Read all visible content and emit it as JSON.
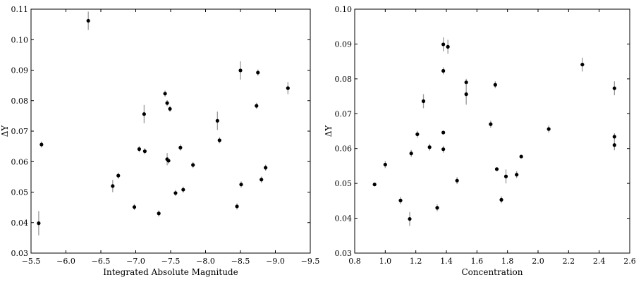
{
  "chart_data": [
    {
      "type": "scatter",
      "title": "",
      "xlabel": "Integrated Absolute Magnitude",
      "ylabel": "ΔY",
      "xlim": [
        -5.5,
        -9.5
      ],
      "ylim": [
        0.03,
        0.11
      ],
      "x_reversed": true,
      "xticks": [
        -5.5,
        -6.0,
        -6.5,
        -7.0,
        -7.5,
        -8.0,
        -8.5,
        -9.0,
        -9.5
      ],
      "xtick_labels": [
        "−5.5",
        "−6.0",
        "−6.5",
        "−7.0",
        "−7.5",
        "−8.0",
        "−8.5",
        "−9.0",
        "−9.5"
      ],
      "yticks": [
        0.03,
        0.04,
        0.05,
        0.06,
        0.07,
        0.08,
        0.09,
        0.1,
        0.11
      ],
      "ytick_labels": [
        "0.03",
        "0.04",
        "0.05",
        "0.06",
        "0.07",
        "0.08",
        "0.09",
        "0.10",
        "0.11"
      ],
      "grid": false,
      "points": [
        {
          "x": -5.61,
          "y": 0.0398,
          "err": 0.004
        },
        {
          "x": -5.65,
          "y": 0.0656,
          "err": 0.001
        },
        {
          "x": -6.32,
          "y": 0.1062,
          "err": 0.003
        },
        {
          "x": -6.67,
          "y": 0.052,
          "err": 0.002
        },
        {
          "x": -6.75,
          "y": 0.0554,
          "err": 0.001
        },
        {
          "x": -6.98,
          "y": 0.0451,
          "err": 0.001
        },
        {
          "x": -7.05,
          "y": 0.0641,
          "err": 0.001
        },
        {
          "x": -7.12,
          "y": 0.0756,
          "err": 0.003
        },
        {
          "x": -7.13,
          "y": 0.0634,
          "err": 0.001
        },
        {
          "x": -7.33,
          "y": 0.043,
          "err": 0.001
        },
        {
          "x": -7.42,
          "y": 0.0823,
          "err": 0.001
        },
        {
          "x": -7.45,
          "y": 0.0608,
          "err": 0.002
        },
        {
          "x": -7.45,
          "y": 0.0792,
          "err": 0.001
        },
        {
          "x": -7.47,
          "y": 0.0603,
          "err": 0.001
        },
        {
          "x": -7.49,
          "y": 0.0773,
          "err": 0.001
        },
        {
          "x": -7.57,
          "y": 0.0497,
          "err": 0.001
        },
        {
          "x": -7.64,
          "y": 0.0646,
          "err": 0.001
        },
        {
          "x": -7.68,
          "y": 0.0508,
          "err": 0.001
        },
        {
          "x": -7.82,
          "y": 0.0589,
          "err": 0.001
        },
        {
          "x": -8.17,
          "y": 0.0734,
          "err": 0.003
        },
        {
          "x": -8.2,
          "y": 0.067,
          "err": 0.001
        },
        {
          "x": -8.45,
          "y": 0.0453,
          "err": 0.001
        },
        {
          "x": -8.5,
          "y": 0.0899,
          "err": 0.003
        },
        {
          "x": -8.51,
          "y": 0.0525,
          "err": 0.001
        },
        {
          "x": -8.73,
          "y": 0.0783,
          "err": 0.001
        },
        {
          "x": -8.75,
          "y": 0.0892,
          "err": 0.001
        },
        {
          "x": -8.8,
          "y": 0.0541,
          "err": 0.001
        },
        {
          "x": -8.86,
          "y": 0.058,
          "err": 0.001
        },
        {
          "x": -9.18,
          "y": 0.0841,
          "err": 0.002
        }
      ]
    },
    {
      "type": "scatter",
      "title": "",
      "xlabel": "Concentration",
      "ylabel": "ΔY",
      "xlim": [
        0.8,
        2.6
      ],
      "ylim": [
        0.03,
        0.1
      ],
      "xticks": [
        0.8,
        1.0,
        1.2,
        1.4,
        1.6,
        1.8,
        2.0,
        2.2,
        2.4,
        2.6
      ],
      "xtick_labels": [
        "0.8",
        "1.0",
        "1.2",
        "1.4",
        "1.6",
        "1.8",
        "2.0",
        "2.2",
        "2.4",
        "2.6"
      ],
      "yticks": [
        0.03,
        0.04,
        0.05,
        0.06,
        0.07,
        0.08,
        0.09,
        0.1
      ],
      "ytick_labels": [
        "0.03",
        "0.04",
        "0.05",
        "0.06",
        "0.07",
        "0.08",
        "0.09",
        "0.10"
      ],
      "grid": false,
      "points": [
        {
          "x": 0.93,
          "y": 0.0497,
          "err": 0.0005
        },
        {
          "x": 1.0,
          "y": 0.0554,
          "err": 0.001
        },
        {
          "x": 1.1,
          "y": 0.0451,
          "err": 0.001
        },
        {
          "x": 1.16,
          "y": 0.0398,
          "err": 0.002
        },
        {
          "x": 1.17,
          "y": 0.0586,
          "err": 0.001
        },
        {
          "x": 1.21,
          "y": 0.0641,
          "err": 0.001
        },
        {
          "x": 1.25,
          "y": 0.0736,
          "err": 0.002
        },
        {
          "x": 1.29,
          "y": 0.0604,
          "err": 0.001
        },
        {
          "x": 1.34,
          "y": 0.043,
          "err": 0.001
        },
        {
          "x": 1.38,
          "y": 0.0899,
          "err": 0.002
        },
        {
          "x": 1.38,
          "y": 0.0823,
          "err": 0.001
        },
        {
          "x": 1.38,
          "y": 0.0646,
          "err": 0.0005
        },
        {
          "x": 1.38,
          "y": 0.0598,
          "err": 0.001
        },
        {
          "x": 1.41,
          "y": 0.0892,
          "err": 0.002
        },
        {
          "x": 1.47,
          "y": 0.0508,
          "err": 0.001
        },
        {
          "x": 1.53,
          "y": 0.079,
          "err": 0.001
        },
        {
          "x": 1.53,
          "y": 0.0756,
          "err": 0.003
        },
        {
          "x": 1.69,
          "y": 0.067,
          "err": 0.001
        },
        {
          "x": 1.72,
          "y": 0.0783,
          "err": 0.001
        },
        {
          "x": 1.73,
          "y": 0.0541,
          "err": 0.0005
        },
        {
          "x": 1.76,
          "y": 0.0453,
          "err": 0.001
        },
        {
          "x": 1.79,
          "y": 0.052,
          "err": 0.002
        },
        {
          "x": 1.86,
          "y": 0.0525,
          "err": 0.001
        },
        {
          "x": 1.89,
          "y": 0.0577,
          "err": 0.0005
        },
        {
          "x": 2.07,
          "y": 0.0656,
          "err": 0.001
        },
        {
          "x": 2.29,
          "y": 0.0841,
          "err": 0.002
        },
        {
          "x": 2.5,
          "y": 0.0773,
          "err": 0.002
        },
        {
          "x": 2.5,
          "y": 0.0634,
          "err": 0.001
        },
        {
          "x": 2.5,
          "y": 0.061,
          "err": 0.0015
        }
      ]
    }
  ]
}
